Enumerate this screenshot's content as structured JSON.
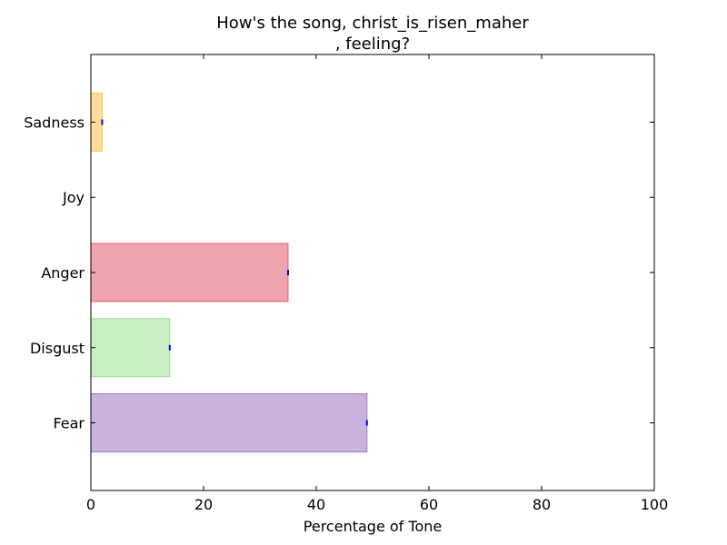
{
  "chart_data": {
    "type": "bar",
    "orientation": "horizontal",
    "title_lines": [
      "How's the song, christ_is_risen_maher",
      ", feeling?"
    ],
    "xlabel": "Percentage of Tone",
    "ylabel": "",
    "xlim": [
      0,
      100
    ],
    "xticks": [
      "0",
      "20",
      "40",
      "60",
      "80",
      "100"
    ],
    "grid": false,
    "categories": [
      "Fear",
      "Disgust",
      "Anger",
      "Joy",
      "Sadness"
    ],
    "values": [
      49,
      14,
      35,
      0,
      2
    ],
    "colors": [
      "#9467bd",
      "#98df8a",
      "#e0475f",
      "#ffffff",
      "#ffbb33"
    ],
    "edge_colors": [
      "#9467bd",
      "#7fd37f",
      "#e0475f",
      "#ffffff",
      "#ffbb33"
    ],
    "error_bar_color": "#0000ff"
  }
}
